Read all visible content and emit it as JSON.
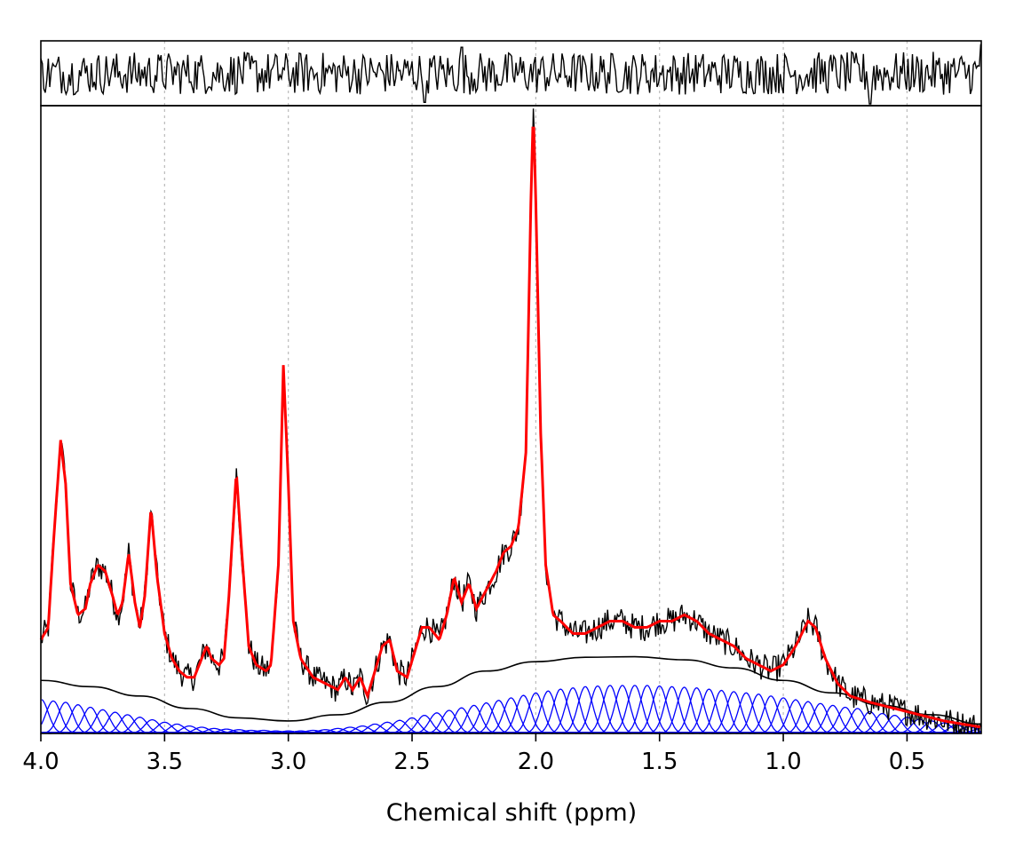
{
  "chart_data": {
    "type": "line",
    "title": "",
    "xlabel": "Chemical shift (ppm)",
    "ylabel": "",
    "x_reversed": true,
    "xlim": [
      4.0,
      0.2
    ],
    "x_ticks": [
      4.0,
      3.5,
      3.0,
      2.5,
      2.0,
      1.5,
      1.0,
      0.5
    ],
    "x_tick_labels": [
      "4.0",
      "3.5",
      "3.0",
      "2.5",
      "2.0",
      "1.5",
      "1.0",
      "0.5"
    ],
    "grid": "vertical dotted lines at x ticks",
    "legend": "none",
    "panels": [
      "residual (top strip)",
      "spectrum with fit, baseline and basis functions (main)"
    ],
    "colors": {
      "data": "#000000",
      "fit": "#ff0000",
      "baseline": "#000000",
      "basis": "#0000ff",
      "grid": "#bbbbbb"
    },
    "series": [
      {
        "role": "fit",
        "color": "#ff0000",
        "ylim": [
          0,
          1
        ],
        "points": [
          [
            4.0,
            0.15
          ],
          [
            3.97,
            0.17
          ],
          [
            3.95,
            0.3
          ],
          [
            3.92,
            0.47
          ],
          [
            3.9,
            0.4
          ],
          [
            3.88,
            0.24
          ],
          [
            3.85,
            0.19
          ],
          [
            3.82,
            0.2
          ],
          [
            3.8,
            0.24
          ],
          [
            3.77,
            0.27
          ],
          [
            3.74,
            0.26
          ],
          [
            3.71,
            0.22
          ],
          [
            3.69,
            0.19
          ],
          [
            3.67,
            0.21
          ],
          [
            3.645,
            0.29
          ],
          [
            3.62,
            0.21
          ],
          [
            3.6,
            0.17
          ],
          [
            3.58,
            0.22
          ],
          [
            3.555,
            0.36
          ],
          [
            3.53,
            0.25
          ],
          [
            3.5,
            0.16
          ],
          [
            3.47,
            0.12
          ],
          [
            3.44,
            0.1
          ],
          [
            3.41,
            0.09
          ],
          [
            3.38,
            0.09
          ],
          [
            3.35,
            0.12
          ],
          [
            3.33,
            0.14
          ],
          [
            3.31,
            0.12
          ],
          [
            3.28,
            0.11
          ],
          [
            3.26,
            0.12
          ],
          [
            3.24,
            0.22
          ],
          [
            3.21,
            0.42
          ],
          [
            3.19,
            0.3
          ],
          [
            3.16,
            0.14
          ],
          [
            3.13,
            0.11
          ],
          [
            3.09,
            0.1
          ],
          [
            3.07,
            0.11
          ],
          [
            3.04,
            0.27
          ],
          [
            3.02,
            0.59
          ],
          [
            3.0,
            0.4
          ],
          [
            2.98,
            0.18
          ],
          [
            2.95,
            0.12
          ],
          [
            2.9,
            0.09
          ],
          [
            2.85,
            0.08
          ],
          [
            2.8,
            0.07
          ],
          [
            2.77,
            0.09
          ],
          [
            2.74,
            0.07
          ],
          [
            2.71,
            0.09
          ],
          [
            2.68,
            0.06
          ],
          [
            2.65,
            0.1
          ],
          [
            2.62,
            0.14
          ],
          [
            2.59,
            0.15
          ],
          [
            2.56,
            0.1
          ],
          [
            2.52,
            0.09
          ],
          [
            2.49,
            0.13
          ],
          [
            2.46,
            0.17
          ],
          [
            2.43,
            0.17
          ],
          [
            2.39,
            0.15
          ],
          [
            2.36,
            0.19
          ],
          [
            2.33,
            0.25
          ],
          [
            2.3,
            0.21
          ],
          [
            2.27,
            0.24
          ],
          [
            2.24,
            0.2
          ],
          [
            2.2,
            0.23
          ],
          [
            2.16,
            0.26
          ],
          [
            2.13,
            0.29
          ],
          [
            2.1,
            0.3
          ],
          [
            2.07,
            0.33
          ],
          [
            2.04,
            0.45
          ],
          [
            2.02,
            0.85
          ],
          [
            2.01,
            1.0
          ],
          [
            2.0,
            0.85
          ],
          [
            1.98,
            0.48
          ],
          [
            1.96,
            0.27
          ],
          [
            1.93,
            0.19
          ],
          [
            1.9,
            0.18
          ],
          [
            1.85,
            0.16
          ],
          [
            1.8,
            0.16
          ],
          [
            1.75,
            0.17
          ],
          [
            1.7,
            0.18
          ],
          [
            1.65,
            0.18
          ],
          [
            1.6,
            0.17
          ],
          [
            1.55,
            0.17
          ],
          [
            1.5,
            0.18
          ],
          [
            1.45,
            0.18
          ],
          [
            1.4,
            0.19
          ],
          [
            1.35,
            0.18
          ],
          [
            1.3,
            0.16
          ],
          [
            1.25,
            0.15
          ],
          [
            1.2,
            0.14
          ],
          [
            1.15,
            0.12
          ],
          [
            1.1,
            0.11
          ],
          [
            1.05,
            0.1
          ],
          [
            1.0,
            0.11
          ],
          [
            0.95,
            0.14
          ],
          [
            0.9,
            0.18
          ],
          [
            0.87,
            0.17
          ],
          [
            0.83,
            0.12
          ],
          [
            0.78,
            0.08
          ],
          [
            0.73,
            0.06
          ],
          [
            0.65,
            0.05
          ],
          [
            0.55,
            0.04
          ],
          [
            0.45,
            0.03
          ],
          [
            0.35,
            0.02
          ],
          [
            0.2,
            0.01
          ]
        ]
      },
      {
        "role": "baseline",
        "color": "#000000",
        "points": [
          [
            4.0,
            0.085
          ],
          [
            3.8,
            0.075
          ],
          [
            3.6,
            0.06
          ],
          [
            3.4,
            0.04
          ],
          [
            3.2,
            0.025
          ],
          [
            3.0,
            0.02
          ],
          [
            2.8,
            0.03
          ],
          [
            2.6,
            0.05
          ],
          [
            2.4,
            0.075
          ],
          [
            2.2,
            0.1
          ],
          [
            2.0,
            0.115
          ],
          [
            1.8,
            0.122
          ],
          [
            1.6,
            0.123
          ],
          [
            1.4,
            0.118
          ],
          [
            1.2,
            0.105
          ],
          [
            1.0,
            0.085
          ],
          [
            0.8,
            0.065
          ],
          [
            0.6,
            0.045
          ],
          [
            0.4,
            0.03
          ],
          [
            0.2,
            0.015
          ]
        ]
      }
    ],
    "basis_functions": {
      "color": "#0000ff",
      "shape": "gaussian",
      "centers": [
        4.0,
        3.95,
        3.9,
        3.85,
        3.8,
        3.75,
        3.7,
        3.65,
        3.6,
        3.55,
        3.5,
        3.45,
        3.4,
        3.35,
        3.3,
        3.25,
        3.2,
        3.15,
        3.1,
        3.05,
        3.0,
        2.95,
        2.9,
        2.85,
        2.8,
        2.75,
        2.7,
        2.65,
        2.6,
        2.55,
        2.5,
        2.45,
        2.4,
        2.35,
        2.3,
        2.25,
        2.2,
        2.15,
        2.1,
        2.05,
        2.0,
        1.95,
        1.9,
        1.85,
        1.8,
        1.75,
        1.7,
        1.65,
        1.6,
        1.55,
        1.5,
        1.45,
        1.4,
        1.35,
        1.3,
        1.25,
        1.2,
        1.15,
        1.1,
        1.05,
        1.0,
        0.95,
        0.9,
        0.85,
        0.8,
        0.75,
        0.7,
        0.65,
        0.6,
        0.55,
        0.5,
        0.45,
        0.4,
        0.35,
        0.3,
        0.25,
        0.2
      ],
      "amplitudes": [
        0.055,
        0.052,
        0.05,
        0.046,
        0.042,
        0.038,
        0.034,
        0.03,
        0.026,
        0.022,
        0.018,
        0.015,
        0.012,
        0.01,
        0.008,
        0.007,
        0.006,
        0.005,
        0.005,
        0.004,
        0.004,
        0.004,
        0.005,
        0.006,
        0.008,
        0.01,
        0.012,
        0.015,
        0.018,
        0.021,
        0.025,
        0.029,
        0.033,
        0.037,
        0.041,
        0.045,
        0.049,
        0.053,
        0.057,
        0.061,
        0.065,
        0.068,
        0.071,
        0.073,
        0.075,
        0.076,
        0.077,
        0.077,
        0.077,
        0.077,
        0.076,
        0.075,
        0.074,
        0.073,
        0.071,
        0.069,
        0.067,
        0.065,
        0.063,
        0.06,
        0.057,
        0.054,
        0.051,
        0.048,
        0.045,
        0.042,
        0.04,
        0.035,
        0.032,
        0.029,
        0.026,
        0.023,
        0.02,
        0.017,
        0.014,
        0.011,
        0.009
      ],
      "sigma": 0.03
    },
    "residual": {
      "ylim": [
        -1,
        1
      ],
      "noise_level": 0.7,
      "spikes": [
        [
          0.65,
          -1.0
        ],
        [
          2.45,
          -0.95
        ],
        [
          0.2,
          0.95
        ],
        [
          2.3,
          0.85
        ]
      ]
    },
    "noise": {
      "data_noise_level": 0.022
    }
  }
}
